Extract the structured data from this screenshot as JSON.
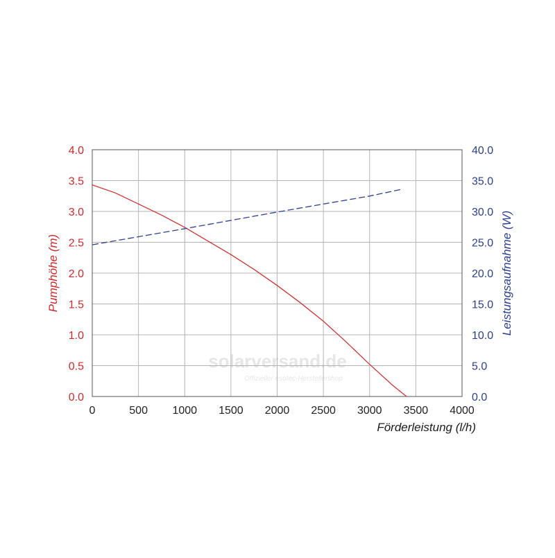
{
  "chart_data": {
    "type": "line",
    "xlabel": "Förderleistung (l/h)",
    "ylabel_left": "Pumphöhe (m)",
    "ylabel_right": "Leistungsaufnahme (W)",
    "xlim": [
      0,
      4000
    ],
    "ylim_left": [
      0,
      4
    ],
    "ylim_right": [
      0,
      40
    ],
    "x_ticks": [
      "0",
      "500",
      "1000",
      "1500",
      "2000",
      "2500",
      "3000",
      "3500",
      "4000"
    ],
    "y_left_ticks": [
      "0.0",
      "0.5",
      "1.0",
      "1.5",
      "2.0",
      "2.5",
      "3.0",
      "3.5",
      "4.0"
    ],
    "y_right_ticks": [
      "0.0",
      "5.0",
      "10.0",
      "15.0",
      "20.0",
      "25.0",
      "30.0",
      "35.0",
      "40.0"
    ],
    "grid": true,
    "series": [
      {
        "axis": "left",
        "style": "solid",
        "color": "#cc3333",
        "x": [
          0,
          250,
          500,
          750,
          1000,
          1250,
          1500,
          1750,
          2000,
          2250,
          2500,
          2750,
          3000,
          3250,
          3400
        ],
        "values": [
          3.43,
          3.3,
          3.12,
          2.94,
          2.74,
          2.52,
          2.3,
          2.06,
          1.8,
          1.52,
          1.22,
          0.88,
          0.52,
          0.18,
          0.0
        ]
      },
      {
        "axis": "right",
        "style": "dashed",
        "color": "#2c3f8c",
        "x": [
          0,
          1000,
          2000,
          3000,
          3350
        ],
        "values": [
          24.6,
          27.2,
          29.9,
          32.5,
          33.6
        ]
      }
    ]
  },
  "watermark": {
    "main": "solarversand.de",
    "sub": "Offizieller esotec-Herstellershop"
  },
  "colors": {
    "left_axis": "#cc2a2a",
    "right_axis": "#2c3f8c",
    "grid": "#b4b4b4"
  }
}
